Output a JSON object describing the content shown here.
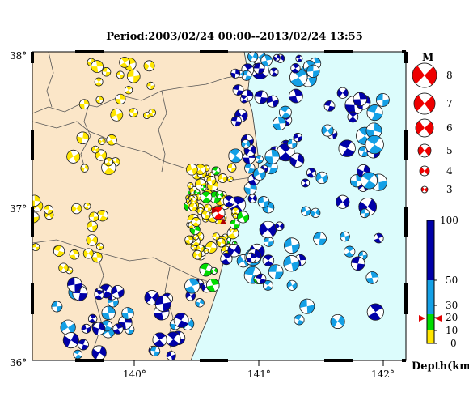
{
  "title": "Period:2003/02/24 00:00--2013/02/24 13:55",
  "axes": {
    "lat_labels": [
      "38°",
      "37°",
      "36°"
    ],
    "lon_labels": [
      "140°",
      "141°",
      "142°"
    ]
  },
  "magnitude_legend": {
    "title": "M",
    "items": [
      {
        "m": "8"
      },
      {
        "m": "7"
      },
      {
        "m": "6"
      },
      {
        "m": "5"
      },
      {
        "m": "4"
      },
      {
        "m": "3"
      }
    ]
  },
  "depth_legend": {
    "title": "Depth(km)",
    "ticks": [
      "100",
      "50",
      "30",
      "20",
      "10",
      "0"
    ],
    "colors": {
      "deep": "#0000a8",
      "mid": "#14a0e6",
      "shallow_mid": "#00dc00",
      "shallow": "#ffe600"
    }
  },
  "colors": {
    "land": "#fbe6c8",
    "sea": "#dcfcfc",
    "latest_event": "#ff0000"
  }
}
